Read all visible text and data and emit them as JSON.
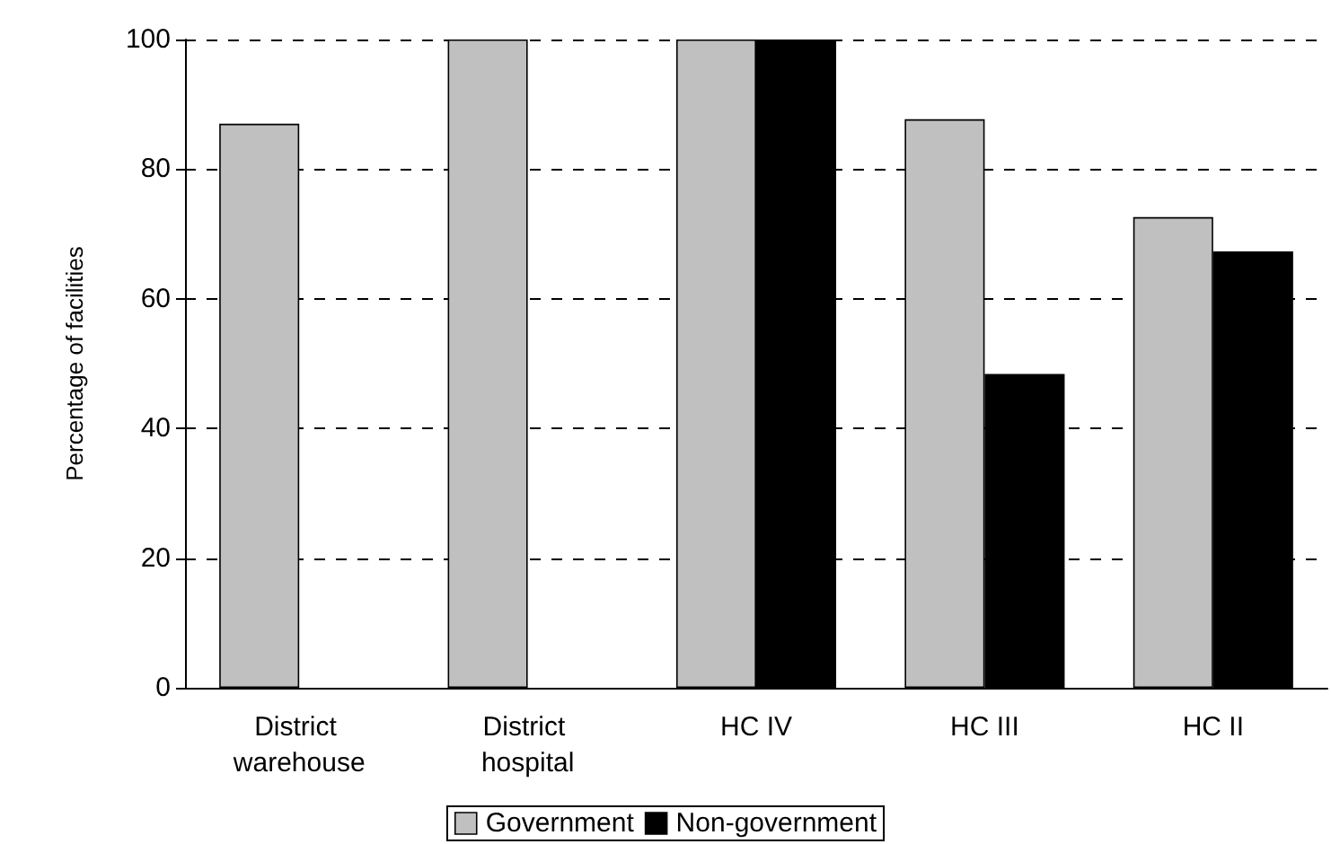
{
  "chart_data": {
    "type": "bar",
    "ylabel": "Percentage of facilities",
    "categories": [
      "District warehouse",
      "District hospital",
      "HC IV",
      "HC III",
      "HC II"
    ],
    "series": [
      {
        "name": "Government",
        "color": "#c0c0c0",
        "values": [
          87,
          100,
          100,
          87.7,
          72.6
        ]
      },
      {
        "name": "Non-government",
        "color": "#000000",
        "values": [
          null,
          null,
          100,
          48.4,
          67.3
        ]
      }
    ],
    "ylim": [
      0,
      100
    ],
    "yticks": [
      0,
      20,
      40,
      60,
      80,
      100
    ],
    "grid": "y",
    "legend": "bottom"
  }
}
